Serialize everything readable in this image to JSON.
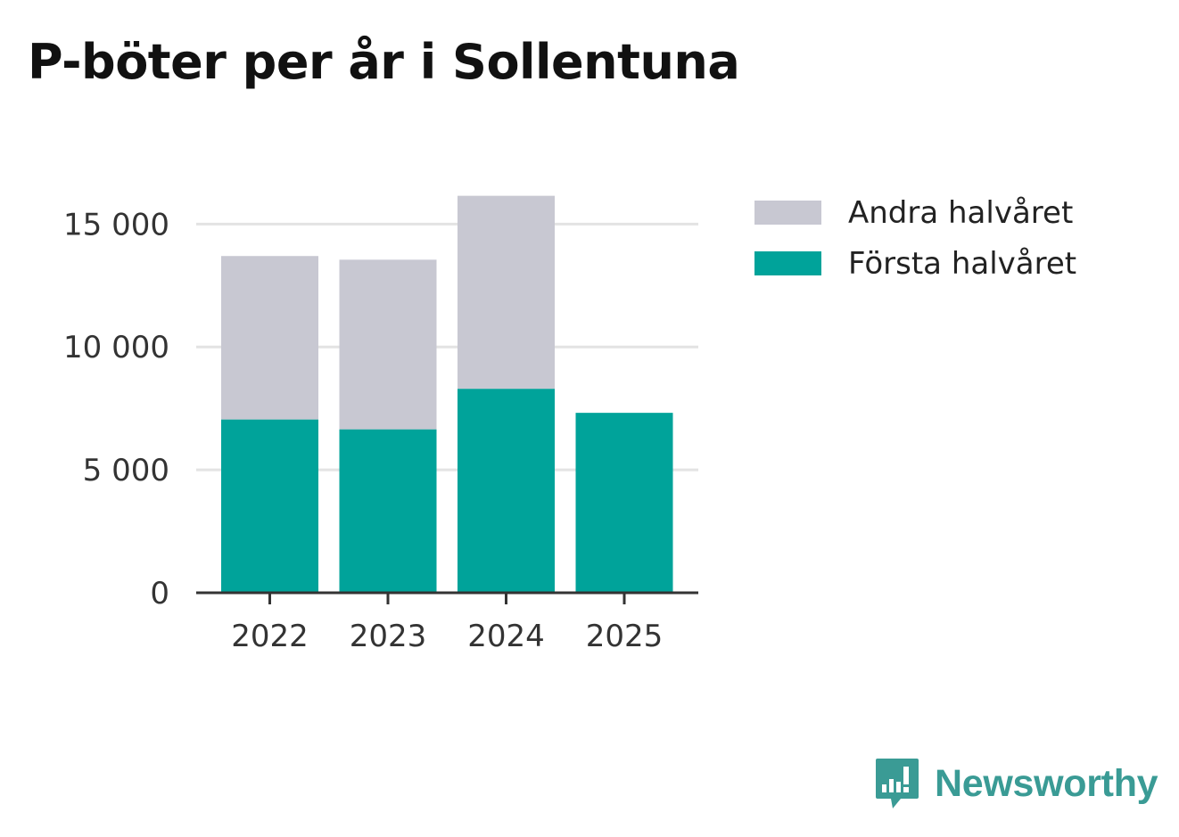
{
  "chart_data": {
    "type": "bar",
    "stacked": true,
    "title": "P-böter per år i Sollentuna",
    "categories": [
      "2022",
      "2023",
      "2024",
      "2025"
    ],
    "series": [
      {
        "name": "Första halvåret",
        "color": "#00a39a",
        "values": [
          7050,
          6650,
          8300,
          7320
        ]
      },
      {
        "name": "Andra halvåret",
        "color": "#c8c8d2",
        "values": [
          6650,
          6900,
          7850,
          0
        ]
      }
    ],
    "yticks": [
      0,
      5000,
      10000,
      15000
    ],
    "ytick_labels": [
      "0",
      "5 000",
      "10 000",
      "15 000"
    ],
    "ylim": [
      0,
      16500
    ],
    "xlabel": "",
    "ylabel": "",
    "grid": true,
    "legend": [
      "Andra halvåret",
      "Första halvåret"
    ],
    "legend_position": "top-right"
  },
  "legend": {
    "items": [
      {
        "label": "Andra halvåret",
        "color": "#c8c8d2"
      },
      {
        "label": "Första halvåret",
        "color": "#00a39a"
      }
    ]
  },
  "brand": {
    "name": "Newsworthy",
    "icon": "newsworthy-logo-icon",
    "color": "#3a9b95"
  }
}
